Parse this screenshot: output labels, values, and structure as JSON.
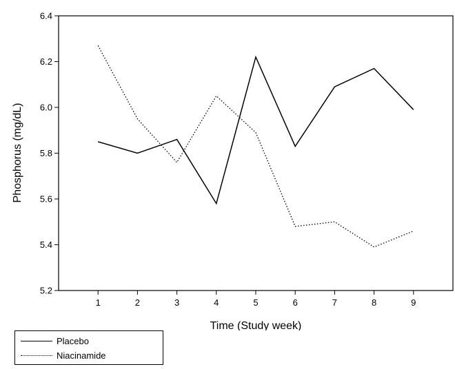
{
  "chart_data": {
    "type": "line",
    "title": "",
    "xlabel": "Time (Study week)",
    "ylabel": "Phosphorus (mg/dL)",
    "x": [
      1,
      2,
      3,
      4,
      5,
      6,
      7,
      8,
      9
    ],
    "xlim": [
      0,
      10
    ],
    "ylim": [
      5.2,
      6.4
    ],
    "xticks": [
      "1",
      "2",
      "3",
      "4",
      "5",
      "6",
      "7",
      "8",
      "9"
    ],
    "yticks": [
      "5.2",
      "5.4",
      "5.6",
      "5.8",
      "6.0",
      "6.2",
      "6.4"
    ],
    "grid": false,
    "legend_position": "bottom-left, below axes",
    "series": [
      {
        "name": "Placebo",
        "style": "solid",
        "color": "#000000",
        "values": [
          5.85,
          5.8,
          5.86,
          5.58,
          6.22,
          5.83,
          6.09,
          6.17,
          5.99
        ]
      },
      {
        "name": "Niacinamide",
        "style": "dotted",
        "color": "#000000",
        "values": [
          6.27,
          5.95,
          5.76,
          6.05,
          5.89,
          5.48,
          5.5,
          5.39,
          5.46
        ]
      }
    ]
  }
}
